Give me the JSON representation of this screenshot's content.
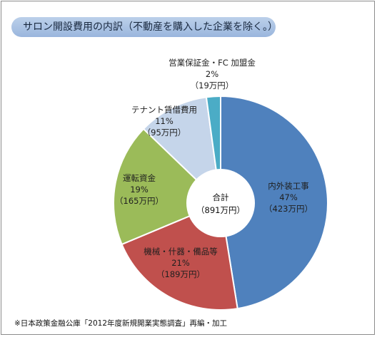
{
  "title": "サロン開設費用の内訳（不動産を購入した企業を除く。）",
  "footnote": "※日本政策金融公庫「2012年度新規開業実態調査」再編・加工",
  "chart_data": {
    "type": "pie",
    "center_label": "合計",
    "center_value": "（891万円）",
    "slices": [
      {
        "name": "内外装工事",
        "percent_label": "47%",
        "amount_label": "（423万円）",
        "value": 423,
        "color": "#4f81bd"
      },
      {
        "name": "機械・什器・備品等",
        "percent_label": "21%",
        "amount_label": "（189万円）",
        "value": 189,
        "color": "#c0504d"
      },
      {
        "name": "運転資金",
        "percent_label": "19%",
        "amount_label": "（165万円）",
        "value": 165,
        "color": "#9bbb59"
      },
      {
        "name": "テナント賃借費用",
        "percent_label": "11%",
        "amount_label": "（95万円）",
        "value": 95,
        "color": "#c5d5ea"
      },
      {
        "name": "営業保証金・FC 加盟金",
        "percent_label": "2%",
        "amount_label": "（19万円）",
        "value": 19,
        "color": "#4bacc6"
      }
    ]
  }
}
